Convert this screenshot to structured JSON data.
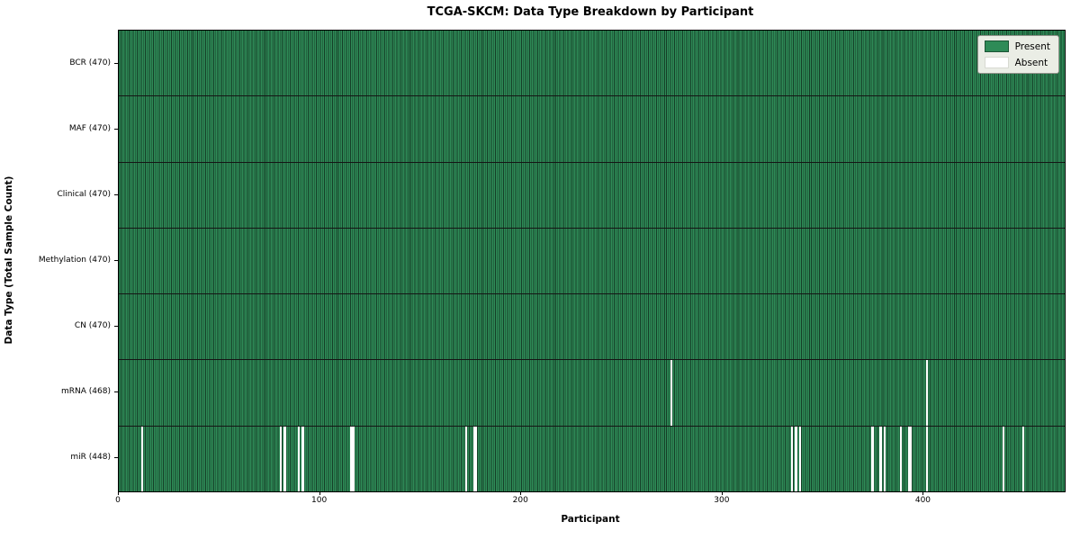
{
  "colors": {
    "present": "#2e8b57",
    "present_edge": "#153e27",
    "absent": "#ffffff",
    "row_divider": "#151515",
    "axis": "#000000",
    "legend_bg": "#eaede5"
  },
  "chart_data": {
    "type": "heatmap",
    "title": "TCGA-SKCM: Data Type Breakdown by Participant",
    "xlabel": "Participant",
    "ylabel": "Data Type (Total Sample Count)",
    "n_participants": 470,
    "x_range": [
      0,
      470
    ],
    "x_ticks": [
      0,
      100,
      200,
      300,
      400
    ],
    "grid": false,
    "legend_position": "upper right",
    "legend_labels": {
      "present": "Present",
      "absent": "Absent"
    },
    "rows": [
      {
        "name": "BCR",
        "label": "BCR (470)",
        "present_count": 470,
        "absent_participants": []
      },
      {
        "name": "MAF",
        "label": "MAF (470)",
        "present_count": 470,
        "absent_participants": []
      },
      {
        "name": "Clinical",
        "label": "Clinical (470)",
        "present_count": 470,
        "absent_participants": []
      },
      {
        "name": "Methylation",
        "label": "Methylation (470)",
        "present_count": 470,
        "absent_participants": []
      },
      {
        "name": "CN",
        "label": "CN (470)",
        "present_count": 470,
        "absent_participants": []
      },
      {
        "name": "mRNA",
        "label": "mRNA (468)",
        "present_count": 468,
        "absent_participants": [
          274,
          401
        ]
      },
      {
        "name": "miR",
        "label": "miR (448)",
        "present_count": 448,
        "absent_participants": [
          11,
          80,
          82,
          89,
          91,
          115,
          116,
          172,
          176,
          177,
          334,
          336,
          338,
          374,
          378,
          380,
          388,
          392,
          393,
          401,
          439,
          449
        ]
      }
    ]
  }
}
